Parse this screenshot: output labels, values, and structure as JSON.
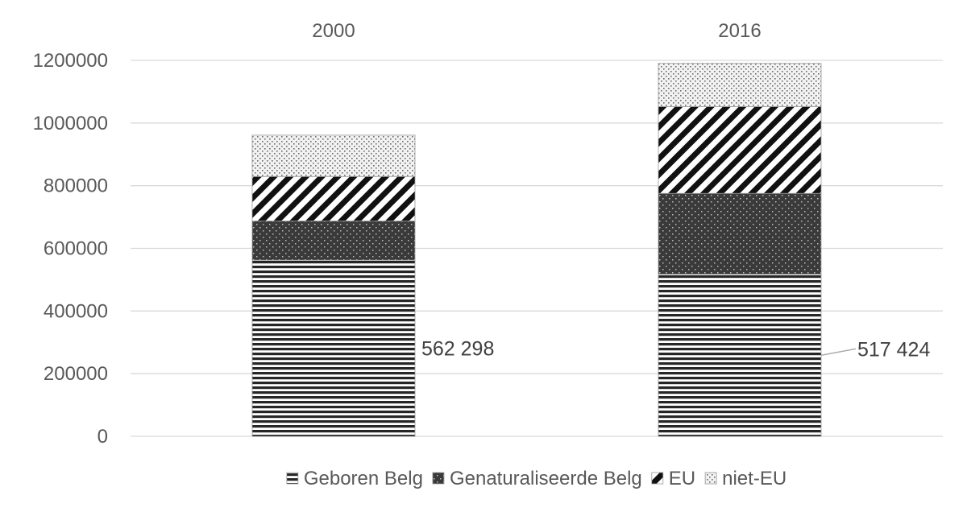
{
  "chart_data": {
    "type": "bar",
    "stacked": true,
    "title": "",
    "xlabel": "",
    "ylabel": "",
    "categories": [
      "2000",
      "2016"
    ],
    "category_axis_position": "top",
    "ylim": [
      0,
      1200000
    ],
    "yticks": [
      0,
      200000,
      400000,
      600000,
      800000,
      1000000,
      1200000
    ],
    "ytick_labels": [
      "0",
      "200000",
      "400000",
      "600000",
      "800000",
      "1000000",
      "1200000"
    ],
    "grid": true,
    "legend_position": "bottom",
    "series": [
      {
        "name": "Geboren Belg",
        "pattern": "horizontal-lines",
        "values": [
          562298,
          517424
        ]
      },
      {
        "name": "Genaturaliseerde Belg",
        "pattern": "dark-dots",
        "values": [
          125000,
          258000
        ]
      },
      {
        "name": "EU",
        "pattern": "diagonal-stripes",
        "values": [
          142000,
          277000
        ]
      },
      {
        "name": "niet-EU",
        "pattern": "light-dots",
        "values": [
          132000,
          138000
        ]
      }
    ],
    "data_labels": [
      {
        "series": "Geboren Belg",
        "category": "2000",
        "text": "562 298"
      },
      {
        "series": "Geboren Belg",
        "category": "2016",
        "text": "517 424"
      }
    ]
  }
}
